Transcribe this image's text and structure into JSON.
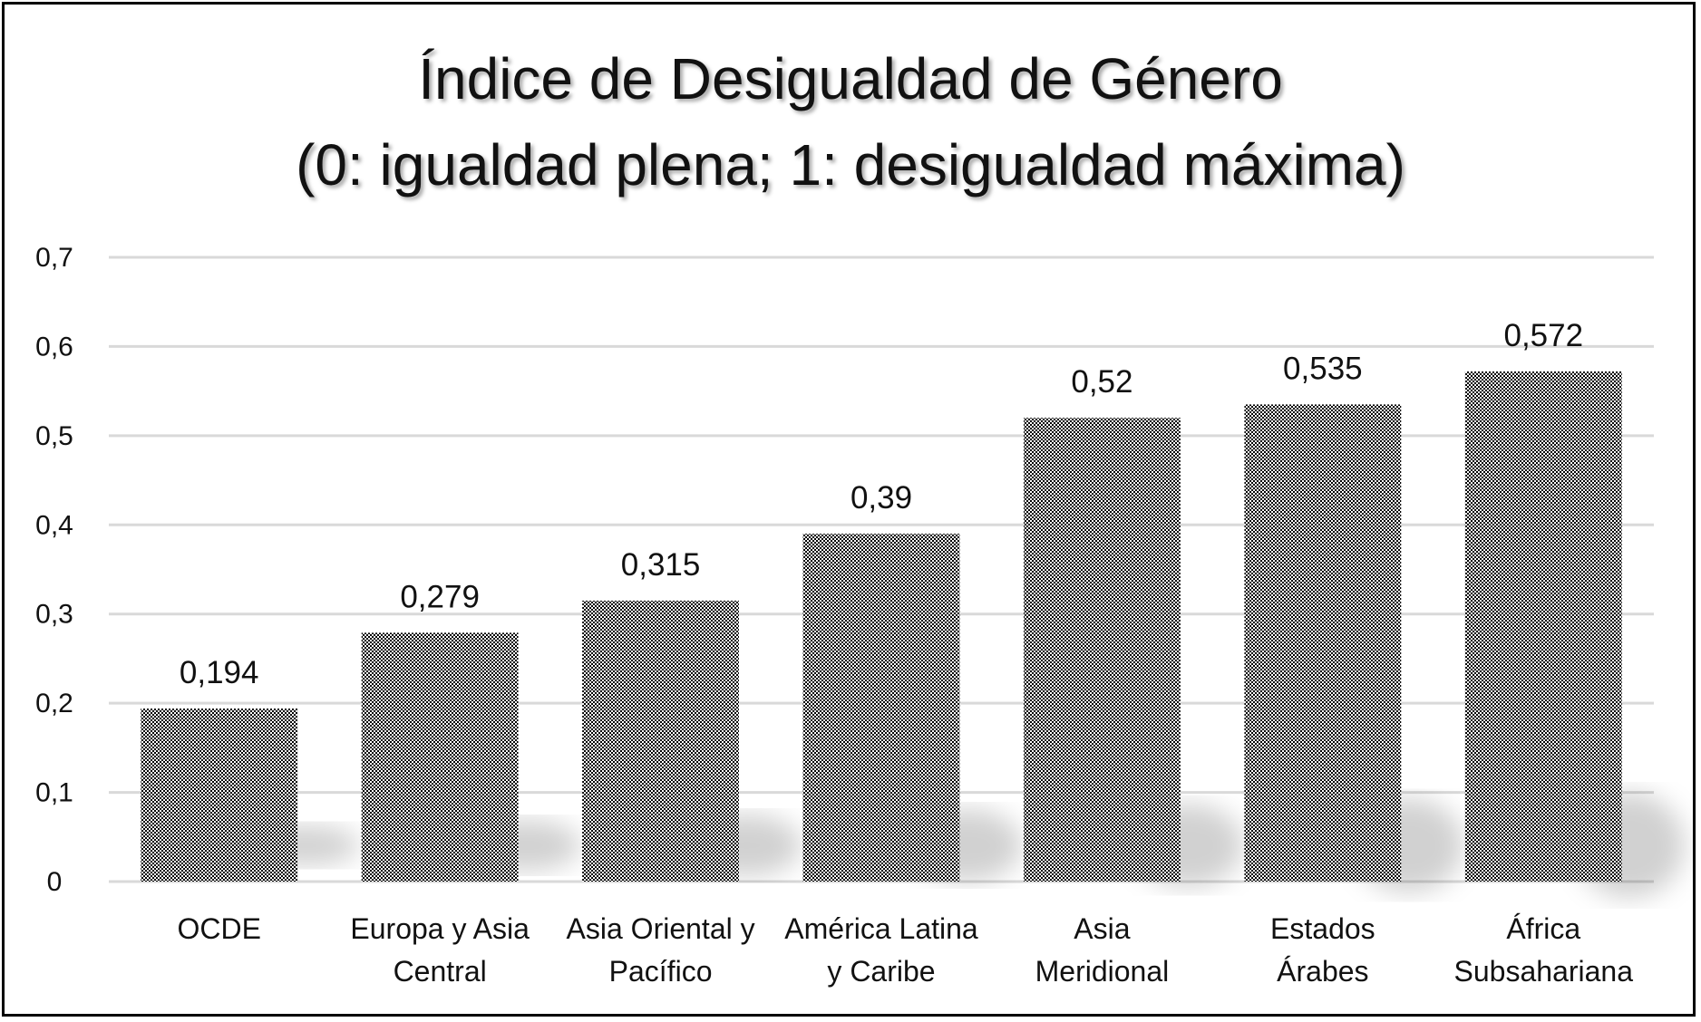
{
  "chart_data": {
    "type": "bar",
    "title": [
      "Índice de Desigualdad de Género",
      "(0: igualdad plena; 1: desigualdad máxima)"
    ],
    "categories": [
      [
        "OCDE"
      ],
      [
        "Europa y Asia",
        "Central"
      ],
      [
        "Asia Oriental y",
        "Pacífico"
      ],
      [
        "América Latina",
        "y Caribe"
      ],
      [
        "Asia",
        "Meridional"
      ],
      [
        "Estados",
        "Árabes"
      ],
      [
        "África",
        "Subsahariana"
      ]
    ],
    "values": [
      0.194,
      0.279,
      0.315,
      0.39,
      0.52,
      0.535,
      0.572
    ],
    "data_labels": [
      "0,194",
      "0,279",
      "0,315",
      "0,39",
      "0,52",
      "0,535",
      "0,572"
    ],
    "yticks": [
      "0",
      "0,1",
      "0,2",
      "0,3",
      "0,4",
      "0,5",
      "0,6",
      "0,7"
    ],
    "ylim": [
      0,
      0.7
    ],
    "xlabel": "",
    "ylabel": "",
    "grid": true,
    "legend": "none",
    "bar_fill": "black-white checkerboard pattern",
    "colors": {
      "grid": "#d9d9d9",
      "bar": "#000000",
      "border": "#000000"
    }
  }
}
